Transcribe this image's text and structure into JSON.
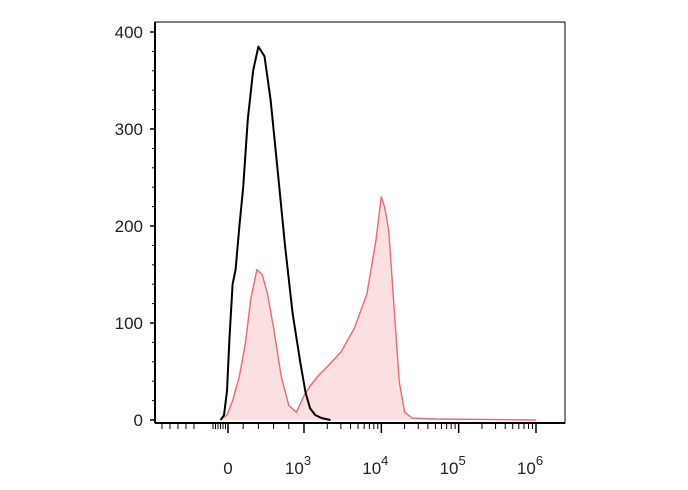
{
  "chart_data": {
    "type": "area",
    "x_scale": "biexponential",
    "xlim": [
      -300,
      1000000
    ],
    "ylim": [
      0,
      400
    ],
    "y_ticks": [
      0,
      100,
      200,
      300,
      400
    ],
    "y_tick_labels": [
      "0",
      "100",
      "200",
      "300",
      "400"
    ],
    "x_ticks": [
      {
        "base": "0",
        "exp": "",
        "value": 0
      },
      {
        "base": "10",
        "exp": "3",
        "value": 1000
      },
      {
        "base": "10",
        "exp": "4",
        "value": 10000
      },
      {
        "base": "10",
        "exp": "5",
        "value": 100000
      },
      {
        "base": "10",
        "exp": "6",
        "value": 1000000
      }
    ],
    "title": "",
    "xlabel": "",
    "ylabel": "",
    "grid": false,
    "series": [
      {
        "color": "#000000",
        "fill": "none",
        "x": [
          -150,
          -80,
          -20,
          20,
          60,
          100,
          150,
          200,
          260,
          330,
          400,
          480,
          560,
          650,
          750,
          850,
          950,
          1050,
          1200,
          1400,
          1700,
          2200
        ],
        "values": [
          0,
          5,
          30,
          85,
          140,
          155,
          200,
          240,
          310,
          360,
          385,
          375,
          330,
          260,
          180,
          110,
          60,
          28,
          12,
          5,
          2,
          0
        ]
      },
      {
        "color": "#ee6677",
        "fill": "#fbe0e2",
        "x": [
          -150,
          -20,
          60,
          150,
          230,
          300,
          380,
          450,
          520,
          600,
          700,
          800,
          900,
          1000,
          1200,
          1500,
          2000,
          3000,
          4500,
          6500,
          8500,
          10000,
          11000,
          12500,
          14500,
          17000,
          20000,
          25000,
          50000,
          1000000
        ],
        "values": [
          0,
          5,
          20,
          45,
          80,
          125,
          155,
          150,
          130,
          95,
          45,
          15,
          8,
          25,
          35,
          45,
          55,
          70,
          95,
          130,
          185,
          230,
          220,
          195,
          120,
          40,
          8,
          2,
          1,
          0
        ]
      }
    ]
  }
}
